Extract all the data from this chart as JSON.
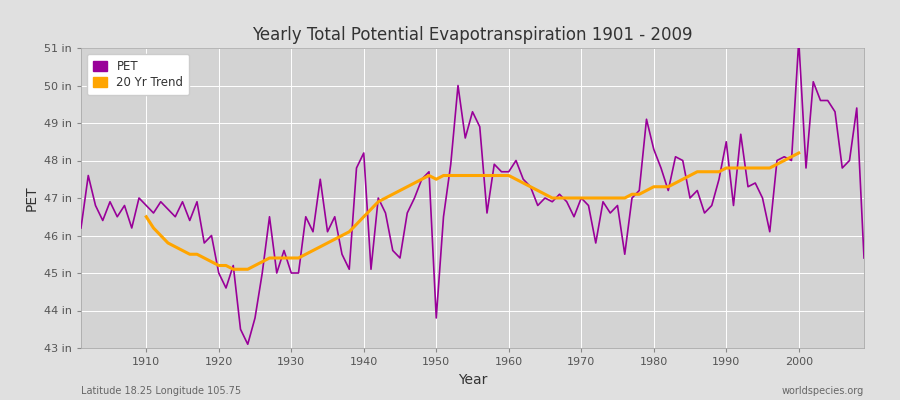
{
  "title": "Yearly Total Potential Evapotranspiration 1901 - 2009",
  "xlabel": "Year",
  "ylabel": "PET",
  "subtitle_left": "Latitude 18.25 Longitude 105.75",
  "subtitle_right": "worldspecies.org",
  "pet_color": "#990099",
  "trend_color": "#FFA500",
  "background_color": "#e0e0e0",
  "plot_bg_color": "#d3d3d3",
  "ylim_min": 43,
  "ylim_max": 51,
  "yticks": [
    43,
    44,
    45,
    46,
    47,
    48,
    49,
    50,
    51
  ],
  "years": [
    1901,
    1902,
    1903,
    1904,
    1905,
    1906,
    1907,
    1908,
    1909,
    1910,
    1911,
    1912,
    1913,
    1914,
    1915,
    1916,
    1917,
    1918,
    1919,
    1920,
    1921,
    1922,
    1923,
    1924,
    1925,
    1926,
    1927,
    1928,
    1929,
    1930,
    1931,
    1932,
    1933,
    1934,
    1935,
    1936,
    1937,
    1938,
    1939,
    1940,
    1941,
    1942,
    1943,
    1944,
    1945,
    1946,
    1947,
    1948,
    1949,
    1950,
    1951,
    1952,
    1953,
    1954,
    1955,
    1956,
    1957,
    1958,
    1959,
    1960,
    1961,
    1962,
    1963,
    1964,
    1965,
    1966,
    1967,
    1968,
    1969,
    1970,
    1971,
    1972,
    1973,
    1974,
    1975,
    1976,
    1977,
    1978,
    1979,
    1980,
    1981,
    1982,
    1983,
    1984,
    1985,
    1986,
    1987,
    1988,
    1989,
    1990,
    1991,
    1992,
    1993,
    1994,
    1995,
    1996,
    1997,
    1998,
    1999,
    2000,
    2001,
    2002,
    2003,
    2004,
    2005,
    2006,
    2007,
    2008,
    2009
  ],
  "pet_values": [
    46.2,
    47.6,
    46.8,
    46.4,
    46.9,
    46.5,
    46.8,
    46.2,
    47.0,
    46.8,
    46.6,
    46.9,
    46.7,
    46.5,
    46.9,
    46.4,
    46.9,
    45.8,
    46.0,
    45.0,
    44.6,
    45.2,
    43.5,
    43.1,
    43.8,
    45.0,
    46.5,
    45.0,
    45.6,
    45.0,
    45.0,
    46.5,
    46.1,
    47.5,
    46.1,
    46.5,
    45.5,
    45.1,
    47.8,
    48.2,
    45.1,
    47.0,
    46.6,
    45.6,
    45.4,
    46.6,
    47.0,
    47.5,
    47.7,
    43.8,
    46.5,
    47.9,
    50.0,
    48.6,
    49.3,
    48.9,
    46.6,
    47.9,
    47.7,
    47.7,
    48.0,
    47.5,
    47.3,
    46.8,
    47.0,
    46.9,
    47.1,
    46.9,
    46.5,
    47.0,
    46.8,
    45.8,
    46.9,
    46.6,
    46.8,
    45.5,
    47.0,
    47.2,
    49.1,
    48.3,
    47.8,
    47.2,
    48.1,
    48.0,
    47.0,
    47.2,
    46.6,
    46.8,
    47.5,
    48.5,
    46.8,
    48.7,
    47.3,
    47.4,
    47.0,
    46.1,
    48.0,
    48.1,
    48.0,
    51.2,
    47.8,
    50.1,
    49.6,
    49.6,
    49.3,
    47.8,
    48.0,
    49.4,
    45.4
  ],
  "trend_values": [
    null,
    null,
    null,
    null,
    null,
    null,
    null,
    null,
    null,
    46.5,
    46.2,
    46.0,
    45.8,
    45.7,
    45.6,
    45.5,
    45.5,
    45.4,
    45.3,
    45.2,
    45.2,
    45.1,
    45.1,
    45.1,
    45.2,
    45.3,
    45.4,
    45.4,
    45.4,
    45.4,
    45.4,
    45.5,
    45.6,
    45.7,
    45.8,
    45.9,
    46.0,
    46.1,
    46.3,
    46.5,
    46.7,
    46.9,
    47.0,
    47.1,
    47.2,
    47.3,
    47.4,
    47.5,
    47.6,
    47.5,
    47.6,
    47.6,
    47.6,
    47.6,
    47.6,
    47.6,
    47.6,
    47.6,
    47.6,
    47.6,
    47.5,
    47.4,
    47.3,
    47.2,
    47.1,
    47.0,
    47.0,
    47.0,
    47.0,
    47.0,
    47.0,
    47.0,
    47.0,
    47.0,
    47.0,
    47.0,
    47.1,
    47.1,
    47.2,
    47.3,
    47.3,
    47.3,
    47.4,
    47.5,
    47.6,
    47.7,
    47.7,
    47.7,
    47.7,
    47.8,
    47.8,
    47.8,
    47.8,
    47.8,
    47.8,
    47.8,
    47.9,
    48.0,
    48.1,
    48.2,
    null,
    null,
    null,
    null,
    null,
    null,
    null,
    null,
    null
  ]
}
